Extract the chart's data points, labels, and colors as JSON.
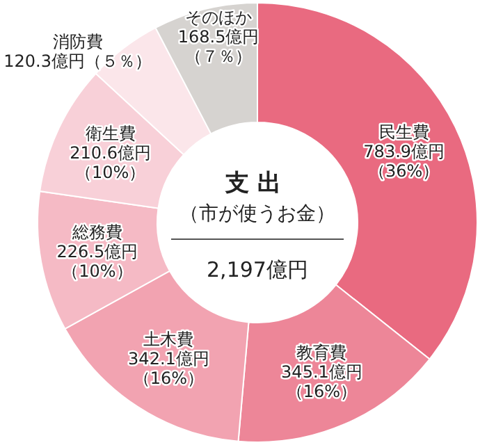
{
  "chart_data": {
    "type": "donut",
    "title": "支出",
    "subtitle": "（市が使うお金）",
    "annotations": [
      "2,197億円"
    ],
    "categories": [
      "民生費",
      "教育費",
      "土木費",
      "総務費",
      "衛生費",
      "消防費",
      "そのほか"
    ],
    "values": [
      783.9,
      345.1,
      342.1,
      226.5,
      210.6,
      120.3,
      168.5
    ],
    "colors": [
      "#e96a80",
      "#ed8698",
      "#f2a3b1",
      "#f5bac5",
      "#f8d0d8",
      "#fbe6ea",
      "#d6d3d0"
    ],
    "value_labels": [
      "783.9億円（36%）",
      "345.1億円（16%）",
      "342.1億円（16%）",
      "226.5億円（10%）",
      "210.6億円（10%）",
      "120.3億円（５％）",
      "168.5億円（７％）"
    ],
    "legend": false
  }
}
